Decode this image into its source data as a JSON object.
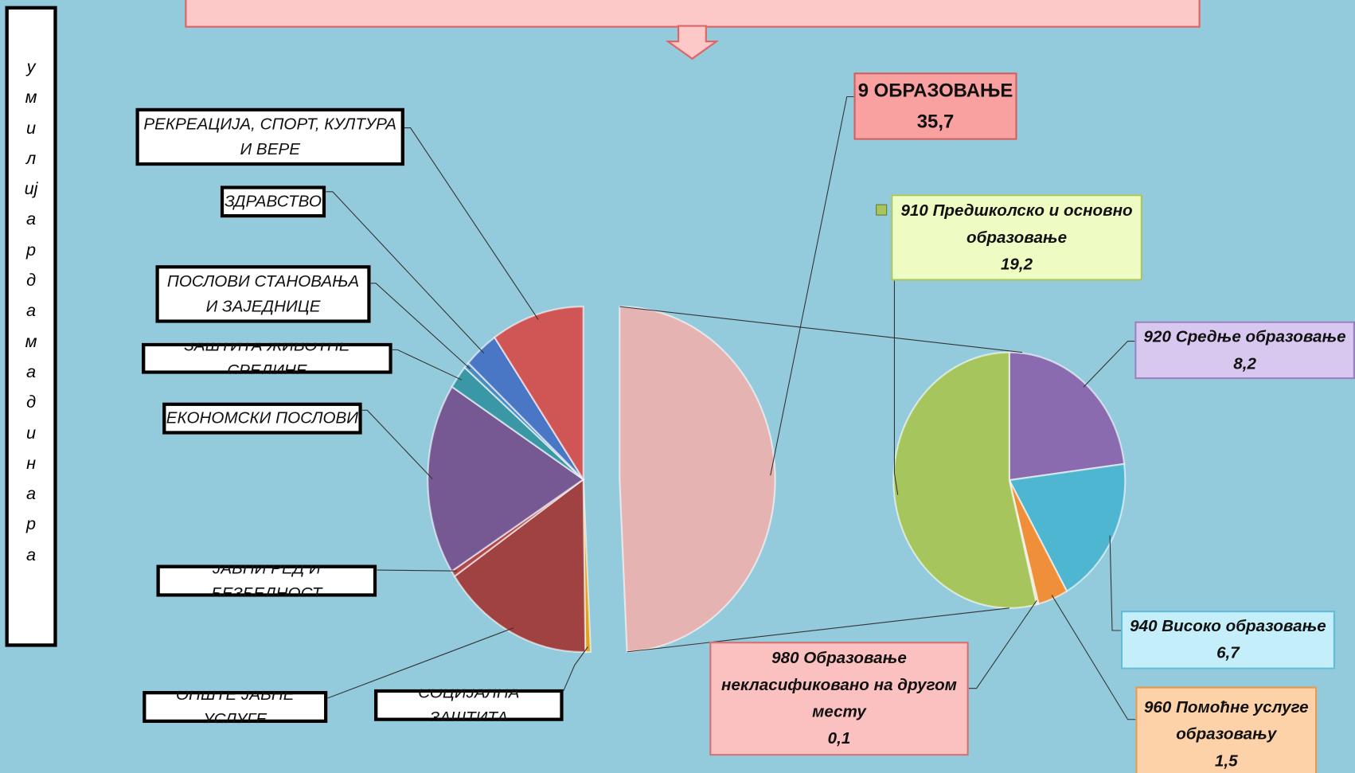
{
  "chart_data": {
    "type": "pie-of-pie",
    "unit_label": "у милијардама динара",
    "main": {
      "categories": [
        "9 ОБРАЗОВАЊЕ",
        "СОЦИЈАЛНА ЗАШТИТА",
        "ОПШТЕ ЈАВНЕ УСЛУГЕ",
        "ЈАВНИ РЕД И БЕЗБЕДНОСТ",
        "ЕКОНОМСКИ ПОСЛОВИ",
        "ЗАШТИТА ЖИВОТНЕ СРЕДИНЕ",
        "ПОСЛОВИ СТАНОВАЊА И ЗАЈЕДНИЦЕ",
        "ЗДРАВСТВО",
        "РЕКРЕАЦИЈА, СПОРТ, КУЛТУРА И ВЕРЕ"
      ],
      "values": [
        35.7,
        0.4,
        11.4,
        0.4,
        13.0,
        1.6,
        0.4,
        2.6,
        7.0
      ],
      "value_labels": [
        "35,7",
        null,
        null,
        null,
        null,
        null,
        null,
        null,
        null
      ],
      "colors": [
        "#e6b3b3",
        "#e0a020",
        "#a04242",
        "#b04848",
        "#765893",
        "#3a98a6",
        "#4a8cc0",
        "#4a76c6",
        "#d05656"
      ]
    },
    "secondary": {
      "categories": [
        "920 Средње образовање",
        "940 Високо образовање",
        "960 Помоћне услуге образовању",
        "980 Образовање некласификовано на другом месту",
        "910 Предшколско и основно образовање"
      ],
      "values": [
        8.2,
        6.7,
        1.5,
        0.1,
        19.2
      ],
      "value_labels": [
        "8,2",
        "6,7",
        "1,5",
        "0,1",
        "19,2"
      ],
      "colors": [
        "#8a6bb0",
        "#4fb6d2",
        "#f08f3a",
        "#d9c2a2",
        "#a7c55d"
      ]
    }
  }
}
